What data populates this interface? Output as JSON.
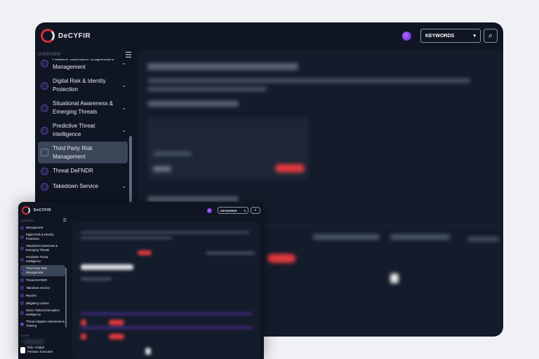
{
  "app": {
    "brand": "DeCYFIR"
  },
  "header": {
    "keyword_select": "KEYWORDS",
    "search_label": "Q"
  },
  "sidebar": {
    "section_label": "OVERVIEW",
    "items": [
      {
        "label": "Attack Surface Exposure Management",
        "visible_label": "Management",
        "icon": "shield-icon",
        "expandable": true
      },
      {
        "label": "Digital Risk & Identity Protection",
        "icon": "shield-icon",
        "expandable": true
      },
      {
        "label": "Situational Awareness & Emerging Threats",
        "icon": "document-icon",
        "expandable": true
      },
      {
        "label": "Predictive Threat Intelligence",
        "icon": "atom-icon",
        "expandable": true
      },
      {
        "label": "Third Party Risk Management",
        "icon": "grid-icon",
        "expandable": false,
        "active": true
      },
      {
        "label": "Threat DeFNDR",
        "icon": "crosshair-icon",
        "expandable": false
      },
      {
        "label": "Takedown Service",
        "icon": "shield-icon",
        "expandable": true
      },
      {
        "label": "Reports",
        "icon": "report-icon",
        "expandable": false
      },
      {
        "label": "Mitigating Actions",
        "icon": "clipboard-icon",
        "expandable": false
      },
      {
        "label": "Sector Tailored Deception Intelligence",
        "icon": "target-icon",
        "expandable": false
      },
      {
        "label": "Threat Adaptive Awareness & Training",
        "icon": "training-icon",
        "expandable": false
      }
    ],
    "scope_label": "SCOPE",
    "user": {
      "role": "Role: Analyst",
      "persona": "Persona: Executive"
    }
  },
  "colors": {
    "background": "#0f1522",
    "panel": "#141c2b",
    "active_item": "#3a4558",
    "accent_red": "#e0393e",
    "accent_purple": "#7b3fe4"
  }
}
